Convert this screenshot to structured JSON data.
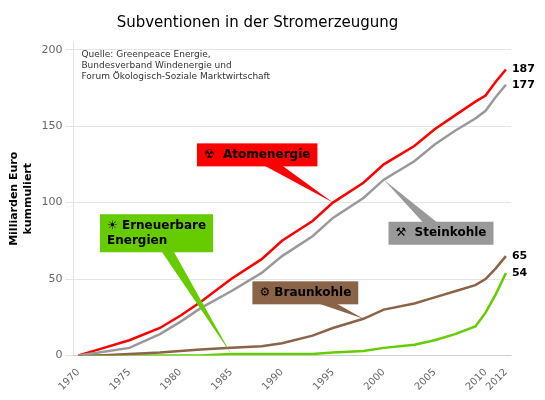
{
  "chart_data": {
    "type": "line",
    "title": "Subventionen in der Stromerzeugung",
    "ylabel": "Milliarden Euro\nkummuliert",
    "annotations": [
      "Quelle: Greenpeace Energie,\nBundesverband Windenergie und\nForum Ökologisch-Soziale Marktwirtschaft"
    ],
    "x": [
      1970,
      1972,
      1975,
      1978,
      1980,
      1982,
      1985,
      1988,
      1990,
      1993,
      1995,
      1998,
      2000,
      2003,
      2005,
      2007,
      2009,
      2010,
      2011,
      2012
    ],
    "series": [
      {
        "name": "⚒  Steinkohle",
        "color": "#999999",
        "values": [
          0,
          2,
          5,
          14,
          22,
          31,
          42,
          54,
          65,
          78,
          90,
          103,
          115,
          127,
          138,
          147,
          155,
          160,
          169,
          177
        ],
        "value_labels": [
          null,
          null,
          null,
          null,
          null,
          null,
          null,
          null,
          null,
          null,
          null,
          null,
          null,
          null,
          null,
          null,
          null,
          null,
          null,
          "177"
        ]
      },
      {
        "name": "☢  Atomenergie",
        "color": "#ff0000",
        "values": [
          0,
          4,
          10,
          18,
          26,
          35,
          50,
          63,
          75,
          88,
          100,
          113,
          125,
          137,
          148,
          157,
          166,
          170,
          179,
          187
        ],
        "value_labels": [
          null,
          null,
          null,
          null,
          null,
          null,
          null,
          null,
          null,
          null,
          null,
          null,
          null,
          null,
          null,
          null,
          null,
          null,
          null,
          "187"
        ]
      },
      {
        "name": "⚙ Braunkohle",
        "color": "#8B6347",
        "values": [
          0,
          0,
          1,
          2,
          3,
          4,
          5,
          6,
          8,
          13,
          18,
          24,
          30,
          34,
          38,
          42,
          46,
          50,
          57,
          65
        ],
        "value_labels": [
          null,
          null,
          null,
          null,
          null,
          null,
          null,
          null,
          null,
          null,
          null,
          null,
          null,
          null,
          null,
          null,
          null,
          null,
          null,
          "65"
        ]
      },
      {
        "name": "☀ Erneuerbare\nEnergien",
        "color": "#66cc00",
        "values": [
          0,
          0,
          0,
          0,
          0,
          0,
          1,
          1,
          1,
          1,
          2,
          3,
          5,
          7,
          10,
          14,
          19,
          28,
          40,
          54
        ],
        "value_labels": [
          null,
          null,
          null,
          null,
          null,
          null,
          null,
          null,
          null,
          null,
          null,
          null,
          null,
          null,
          null,
          null,
          null,
          null,
          null,
          "54"
        ]
      }
    ],
    "xlim": [
      1969.5,
      2012.5
    ],
    "xticks": [
      1970,
      1975,
      1980,
      1985,
      1990,
      1995,
      2000,
      2005,
      2010,
      2012
    ],
    "ylim": [
      0,
      205
    ],
    "yticks": [
      0,
      50,
      100,
      150,
      200
    ],
    "grid": "y"
  }
}
